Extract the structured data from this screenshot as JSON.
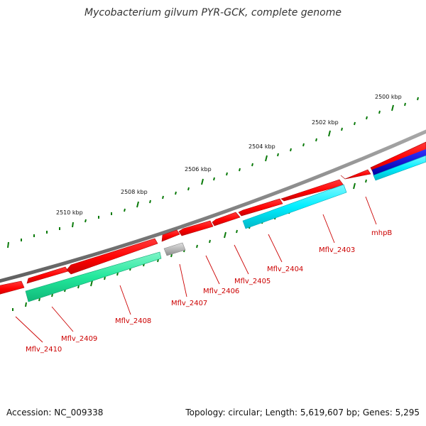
{
  "title": "Mycobacterium gilvum PYR-GCK, complete genome",
  "footer": {
    "accession": "Accession: NC_009338",
    "topology": "Topology: circular; Length: 5,619,607 bp; Genes: 5,295"
  },
  "scale_labels": [
    "2500 kbp",
    "2502 kbp",
    "2504 kbp",
    "2506 kbp",
    "2508 kbp",
    "2510 kbp"
  ],
  "gene_labels": [
    "mhpB",
    "Mflv_2403",
    "Mflv_2404",
    "Mflv_2405",
    "Mflv_2406",
    "Mflv_2407",
    "Mflv_2408",
    "Mflv_2409",
    "Mflv_2410"
  ],
  "colors": {
    "backbone": "#808080",
    "forward_cds": "#ff0000",
    "cog_cyan": "#00e5ee",
    "cog_green": "#21e8a0",
    "cog_blue": "#0000cc",
    "cog_gray": "#b0b0b0",
    "ticks": "#006400",
    "labels": "#cc0000"
  }
}
